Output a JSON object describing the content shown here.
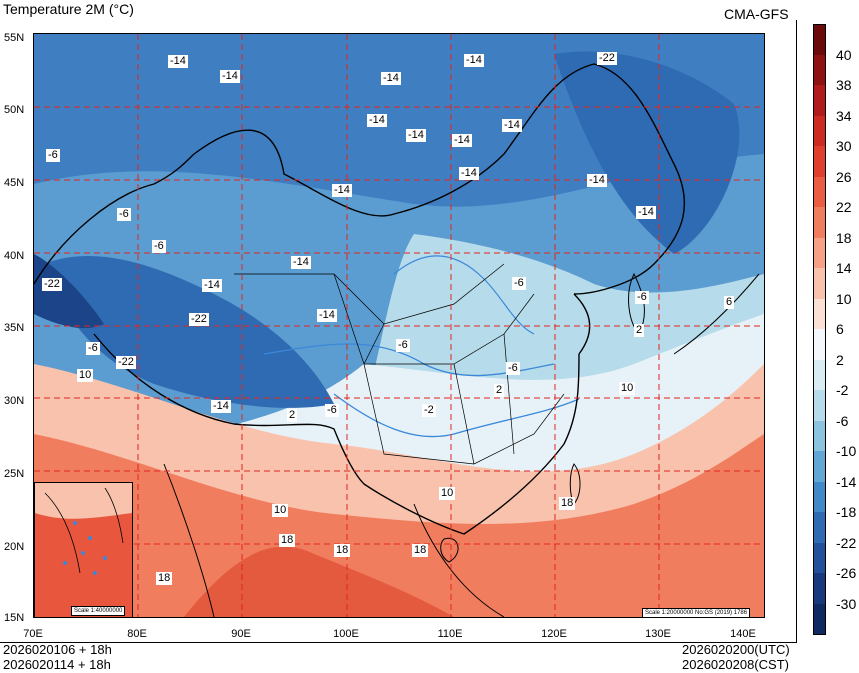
{
  "header": {
    "title": "Temperature  2M (°C)",
    "model": "CMA-GFS"
  },
  "map": {
    "lat_labels": [
      "55N",
      "50N",
      "45N",
      "40N",
      "35N",
      "30N",
      "25N",
      "20N",
      "15N"
    ],
    "lon_labels": [
      "70E",
      "80E",
      "90E",
      "100E",
      "110E",
      "120E",
      "130E",
      "140E"
    ],
    "contour_labels": [
      "-14",
      "-14",
      "-14",
      "-14",
      "-22",
      "-14",
      "-14",
      "-14",
      "-14",
      "-6",
      "-14",
      "-14",
      "-6",
      "-6",
      "-14",
      "-14",
      "-22",
      "-22",
      "-14",
      "-6",
      "-14",
      "-6",
      "-22",
      "-6",
      "10",
      "-14",
      "-14",
      "-6",
      "2",
      "-6",
      "-2",
      "2",
      "10",
      "10",
      "10",
      "18",
      "18",
      "18",
      "18",
      "18",
      "-6",
      "2",
      "6"
    ],
    "inset_scale": "Scale 1:40000000",
    "main_scale": "Scale 1:20000000 No:GS (2019) 1786"
  },
  "colorbar": {
    "ticks": [
      "40",
      "38",
      "34",
      "30",
      "26",
      "22",
      "18",
      "14",
      "10",
      "6",
      "2",
      "-2",
      "-6",
      "-10",
      "-14",
      "-18",
      "-22",
      "-26",
      "-30"
    ],
    "colors": [
      "#6b0a0a",
      "#8f1212",
      "#b01b1b",
      "#cc2a22",
      "#df3f2c",
      "#ea5d42",
      "#f17d5f",
      "#f6a085",
      "#f9c2ad",
      "#fbe0d6",
      "#f4f7fb",
      "#d9ecf4",
      "#b6dbea",
      "#8cc4e0",
      "#63a8d5",
      "#4289c8",
      "#2f6bb3",
      "#23509a",
      "#183a7c",
      "#0f2a60"
    ]
  },
  "footer": {
    "init1": "2026020106 + 18h",
    "init2": "2026020114 + 18h",
    "valid_utc": "2026020200(UTC)",
    "valid_cst": "2026020208(CST)"
  }
}
